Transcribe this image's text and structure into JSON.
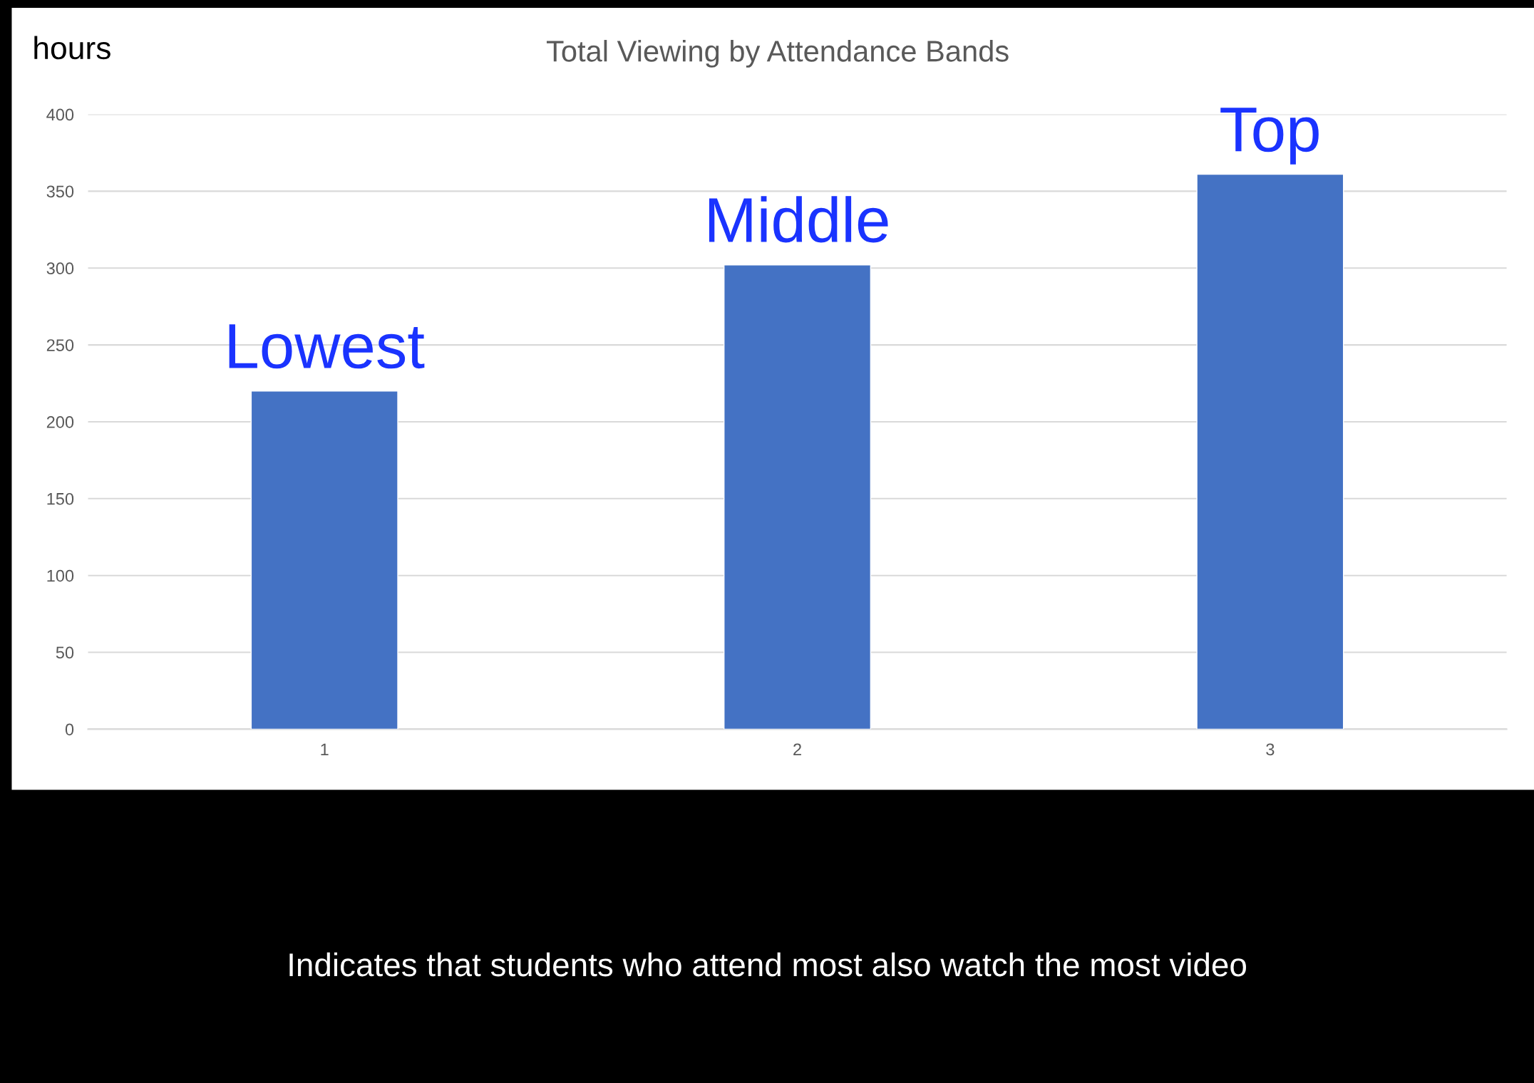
{
  "chart_data": {
    "type": "bar",
    "title": "Total Viewing by Attendance Bands",
    "ylabel": "hours",
    "categories": [
      "1",
      "2",
      "3"
    ],
    "values": [
      220,
      302,
      361
    ],
    "color": "#4472c4",
    "ylim": [
      0,
      400
    ],
    "yticks": [
      0,
      50,
      100,
      150,
      200,
      250,
      300,
      350,
      400
    ],
    "grid": "y",
    "annotations": [
      "Lowest",
      "Middle",
      "Top",
      "Indicates that students who attend most also watch the most video"
    ]
  }
}
